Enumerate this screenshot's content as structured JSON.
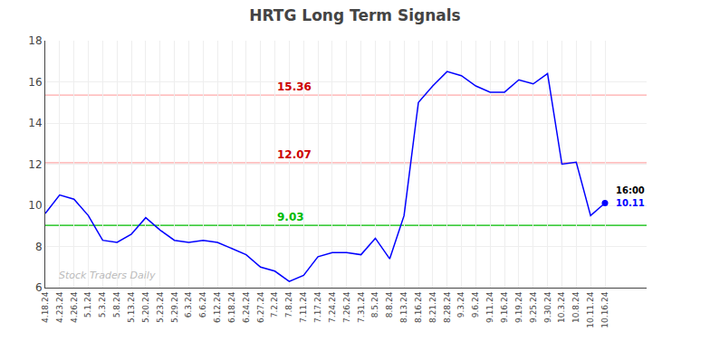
{
  "chart_data": {
    "type": "line",
    "title": "HRTG Long Term Signals",
    "categories": [
      "4.18.24",
      "4.23.24",
      "4.26.24",
      "5.1.24",
      "5.3.24",
      "5.8.24",
      "5.13.24",
      "5.20.24",
      "5.23.24",
      "5.29.24",
      "6.3.24",
      "6.6.24",
      "6.12.24",
      "6.18.24",
      "6.24.24",
      "6.27.24",
      "7.2.24",
      "7.8.24",
      "7.11.24",
      "7.17.24",
      "7.24.24",
      "7.26.24",
      "7.31.24",
      "8.5.24",
      "8.8.24",
      "8.13.24",
      "8.16.24",
      "8.21.24",
      "8.28.24",
      "9.3.24",
      "9.6.24",
      "9.11.24",
      "9.16.24",
      "9.19.24",
      "9.25.24",
      "9.30.24",
      "10.3.24",
      "10.8.24",
      "10.11.24",
      "10.16.24"
    ],
    "series": [
      {
        "color": "blue",
        "values": [
          9.6,
          10.5,
          10.3,
          9.5,
          8.3,
          8.2,
          8.6,
          9.4,
          8.8,
          8.3,
          8.2,
          8.3,
          8.2,
          7.9,
          7.6,
          7.0,
          6.8,
          6.3,
          6.6,
          7.5,
          7.7,
          7.7,
          7.6,
          8.4,
          7.4,
          9.5,
          15.0,
          15.8,
          16.5,
          16.3,
          15.8,
          15.5,
          15.5,
          16.1,
          15.9,
          16.4,
          12.0,
          12.1,
          9.5,
          10.11
        ]
      }
    ],
    "hlines": [
      {
        "value": 15.36,
        "color": "#ffaaaa",
        "label": "15.36",
        "label_color": "#cc0000",
        "x": "7.2.24"
      },
      {
        "value": 12.07,
        "color": "#ffaaaa",
        "label": "12.07",
        "label_color": "#cc0000",
        "x": "7.2.24"
      },
      {
        "value": 9.03,
        "color": "#00bb00",
        "label": "9.03",
        "label_color": "#00bb00",
        "x": "7.2.24"
      }
    ],
    "last_point": {
      "time_label": "16:00",
      "value_label": "10.11",
      "marker": "circle"
    },
    "watermark": {
      "text": "Stock Traders Daily",
      "color": "#bbbbbb"
    },
    "ylim": [
      6,
      18
    ],
    "yticks": [
      6,
      8,
      10,
      12,
      14,
      16,
      18
    ],
    "grid": true
  }
}
